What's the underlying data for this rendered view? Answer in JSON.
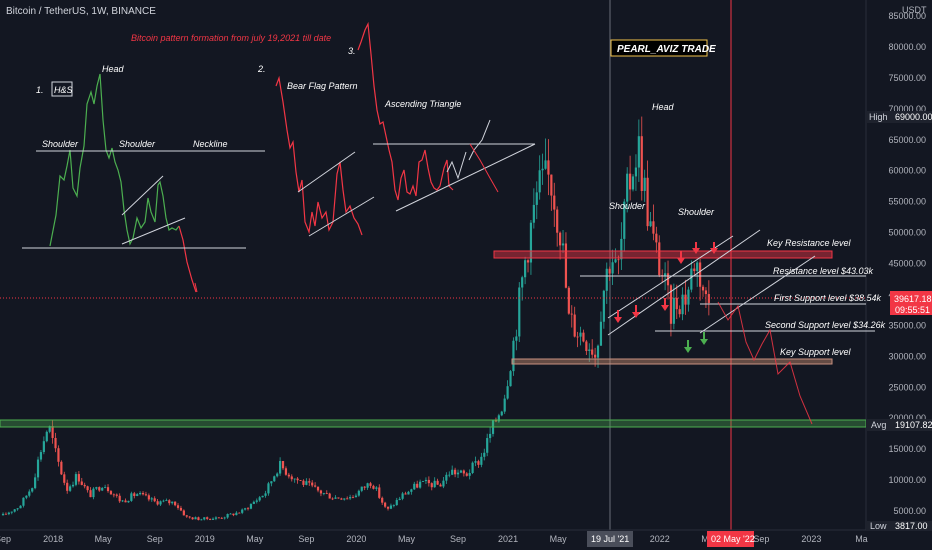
{
  "header": {
    "symbol_title": "Bitcoin / TetherUS, 1W, BINANCE",
    "currency": "USDT",
    "subtitle": "Bitcoin pattern formation from july 19,2021 till date",
    "watermark": "PEARL_AVIZ TRADE"
  },
  "colors": {
    "background": "#131722",
    "up": "#26a69a",
    "down": "#ef5350",
    "resistance": "#f23645",
    "support": "#4caf50",
    "green_line": "#4caf50",
    "red_line": "#f23645"
  },
  "annotations": {
    "hs_number": "1.",
    "hs_box": "H&S",
    "hs_head": "Head",
    "hs_left_shoulder": "Shoulder",
    "hs_right_shoulder": "Shoulder",
    "hs_neckline": "Neckline",
    "bf_number": "2.",
    "bf_label": "Bear Flag Pattern",
    "at_number": "3.",
    "at_label": "Ascending Triangle",
    "main_head": "Head",
    "main_left_shoulder": "Shoulder",
    "main_right_shoulder": "Shoulder",
    "key_resistance": "Key Resistance level",
    "resistance_level": "Resistance level $43.03k",
    "first_support": "First Support level $38.54k",
    "second_support": "Second Support level $34.26k",
    "key_support": "Key Support level"
  },
  "price_badges": {
    "high_label": "High",
    "high_value": "69000.00",
    "current_value": "39617.18",
    "countdown": "09:55:51",
    "avg_label": "Avg",
    "avg_value": "19107.82",
    "low_label": "Low",
    "low_value": "3817.00"
  },
  "cursor_labels": {
    "date_a": "19 Jul '21",
    "date_b": "02 May '22"
  },
  "chart_data": {
    "type": "candlestick",
    "interval": "1W",
    "y_axis_scale": "linear",
    "ylim": [
      0,
      90000
    ],
    "y_ticks": [
      5000,
      10000,
      15000,
      20000,
      25000,
      30000,
      35000,
      40000,
      45000,
      50000,
      55000,
      60000,
      65000,
      70000,
      75000,
      80000,
      85000
    ],
    "x_ticks": [
      {
        "label": "Sep",
        "t": 2017.67
      },
      {
        "label": "2018",
        "t": 2018.0
      },
      {
        "label": "May",
        "t": 2018.33
      },
      {
        "label": "Sep",
        "t": 2018.67
      },
      {
        "label": "2019",
        "t": 2019.0
      },
      {
        "label": "May",
        "t": 2019.33
      },
      {
        "label": "Sep",
        "t": 2019.67
      },
      {
        "label": "2020",
        "t": 2020.0
      },
      {
        "label": "May",
        "t": 2020.33
      },
      {
        "label": "Sep",
        "t": 2020.67
      },
      {
        "label": "2021",
        "t": 2021.0
      },
      {
        "label": "May",
        "t": 2021.33
      },
      {
        "label": "Sep",
        "t": 2021.67
      },
      {
        "label": "2022",
        "t": 2022.0
      },
      {
        "label": "May",
        "t": 2022.33
      },
      {
        "label": "Sep",
        "t": 2022.67
      },
      {
        "label": "2023",
        "t": 2023.0
      },
      {
        "label": "Ma",
        "t": 2023.33
      }
    ],
    "x_range": [
      2017.65,
      2023.36
    ],
    "price_path": [
      [
        2017.67,
        4300
      ],
      [
        2017.78,
        5800
      ],
      [
        2017.86,
        9000
      ],
      [
        2017.92,
        15000
      ],
      [
        2017.97,
        19000
      ],
      [
        2018.02,
        14000
      ],
      [
        2018.09,
        8500
      ],
      [
        2018.16,
        10800
      ],
      [
        2018.24,
        7500
      ],
      [
        2018.33,
        9500
      ],
      [
        2018.45,
        6500
      ],
      [
        2018.55,
        7800
      ],
      [
        2018.67,
        6500
      ],
      [
        2018.8,
        6400
      ],
      [
        2018.88,
        4000
      ],
      [
        2018.97,
        3700
      ],
      [
        2019.1,
        3900
      ],
      [
        2019.25,
        5000
      ],
      [
        2019.4,
        8000
      ],
      [
        2019.49,
        12500
      ],
      [
        2019.58,
        10500
      ],
      [
        2019.75,
        8200
      ],
      [
        2019.85,
        7200
      ],
      [
        2019.97,
        7300
      ],
      [
        2020.1,
        9800
      ],
      [
        2020.2,
        5000
      ],
      [
        2020.3,
        7500
      ],
      [
        2020.42,
        9500
      ],
      [
        2020.55,
        9200
      ],
      [
        2020.62,
        11500
      ],
      [
        2020.72,
        10800
      ],
      [
        2020.82,
        13500
      ],
      [
        2020.9,
        18500
      ],
      [
        2020.97,
        23000
      ],
      [
        2021.04,
        33000
      ],
      [
        2021.12,
        47000
      ],
      [
        2021.2,
        57000
      ],
      [
        2021.28,
        59000
      ],
      [
        2021.35,
        50000
      ],
      [
        2021.4,
        36000
      ],
      [
        2021.47,
        34000
      ],
      [
        2021.55,
        32000
      ],
      [
        2021.58,
        30000
      ],
      [
        2021.62,
        40000
      ],
      [
        2021.68,
        47000
      ],
      [
        2021.72,
        43000
      ],
      [
        2021.78,
        55000
      ],
      [
        2021.82,
        61000
      ],
      [
        2021.86,
        64000
      ],
      [
        2021.9,
        57000
      ],
      [
        2021.95,
        49000
      ],
      [
        2022.02,
        43000
      ],
      [
        2022.07,
        37000
      ],
      [
        2022.11,
        39000
      ],
      [
        2022.18,
        40000
      ],
      [
        2022.23,
        46000
      ],
      [
        2022.27,
        43000
      ],
      [
        2022.31,
        38500
      ],
      [
        2022.34,
        39617
      ]
    ],
    "key_levels": [
      {
        "label": "Key Resistance level",
        "value": 46500
      },
      {
        "label": "Resistance level $43.03k",
        "value": 43030
      },
      {
        "label": "First Support level $38.54k",
        "value": 38540
      },
      {
        "label": "Second Support level $34.26k",
        "value": 34260
      },
      {
        "label": "Key Support level",
        "value": 29500
      },
      {
        "label": "Avg",
        "value": 19107.82
      }
    ],
    "high": 69000,
    "low": 3817,
    "current_price": 39617.18,
    "grid": false,
    "legend": "none"
  }
}
